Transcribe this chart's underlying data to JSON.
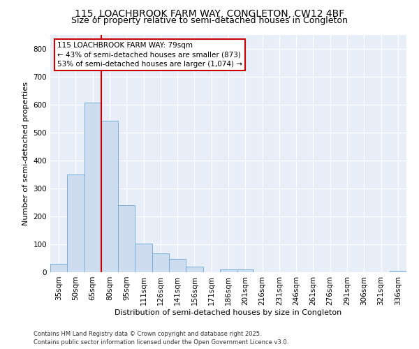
{
  "title1": "115, LOACHBROOK FARM WAY, CONGLETON, CW12 4BF",
  "title2": "Size of property relative to semi-detached houses in Congleton",
  "xlabel": "Distribution of semi-detached houses by size in Congleton",
  "ylabel": "Number of semi-detached properties",
  "categories": [
    "35sqm",
    "50sqm",
    "65sqm",
    "80sqm",
    "95sqm",
    "111sqm",
    "126sqm",
    "141sqm",
    "156sqm",
    "171sqm",
    "186sqm",
    "201sqm",
    "216sqm",
    "231sqm",
    "246sqm",
    "261sqm",
    "276sqm",
    "291sqm",
    "306sqm",
    "321sqm",
    "336sqm"
  ],
  "values": [
    30,
    350,
    607,
    543,
    240,
    102,
    67,
    47,
    20,
    0,
    10,
    10,
    0,
    0,
    0,
    0,
    0,
    0,
    0,
    0,
    5
  ],
  "bar_color": "#cddcee",
  "bar_edge_color": "#7aaed6",
  "vline_x_index": 3,
  "vline_color": "#cc0000",
  "annotation_line1": "115 LOACHBROOK FARM WAY: 79sqm",
  "annotation_line2": "← 43% of semi-detached houses are smaller (873)",
  "annotation_line3": "53% of semi-detached houses are larger (1,074) →",
  "annotation_box_color": "#cc0000",
  "ylim": [
    0,
    850
  ],
  "yticks": [
    0,
    100,
    200,
    300,
    400,
    500,
    600,
    700,
    800
  ],
  "footer1": "Contains HM Land Registry data © Crown copyright and database right 2025.",
  "footer2": "Contains public sector information licensed under the Open Government Licence v3.0.",
  "bg_color": "#ffffff",
  "plot_bg_color": "#e8eef8",
  "grid_color": "#ffffff",
  "title_fontsize": 10,
  "subtitle_fontsize": 9,
  "axis_label_fontsize": 8,
  "tick_fontsize": 7.5,
  "bar_width": 1.0
}
